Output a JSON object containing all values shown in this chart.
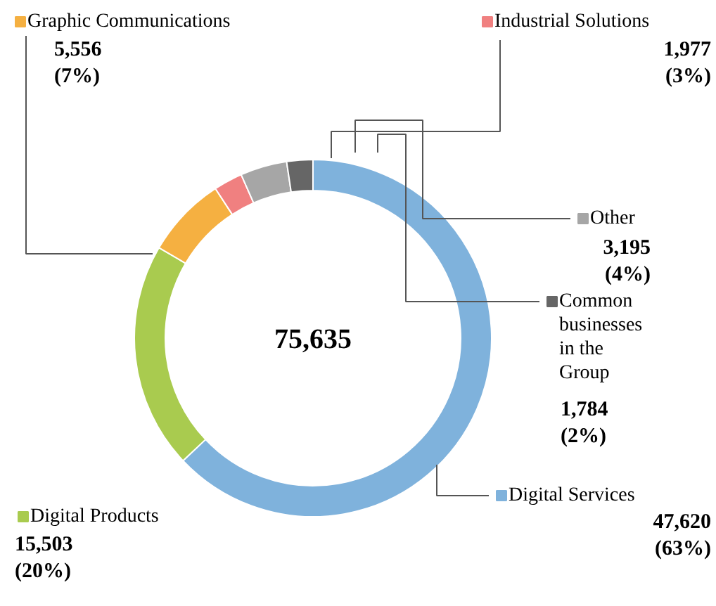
{
  "chart_data": {
    "type": "donut",
    "categories": [
      "Digital Services",
      "Digital Products",
      "Graphic Communications",
      "Industrial Solutions",
      "Other",
      "Common businesses in the Group"
    ],
    "values": [
      47620,
      15503,
      5556,
      1977,
      3195,
      1784
    ],
    "colors": [
      "#7fb2dc",
      "#a9cb4f",
      "#f5b041",
      "#f08080",
      "#a6a6a6",
      "#666666"
    ],
    "value_labels": [
      "47,620\n(63%)",
      "15,503\n(20%)",
      "5,556\n(7%)",
      "1,977\n(3%)",
      "3,195\n(4%)",
      "1,784\n(2%)"
    ],
    "annotations": [
      "75,635"
    ],
    "legend": "right"
  }
}
